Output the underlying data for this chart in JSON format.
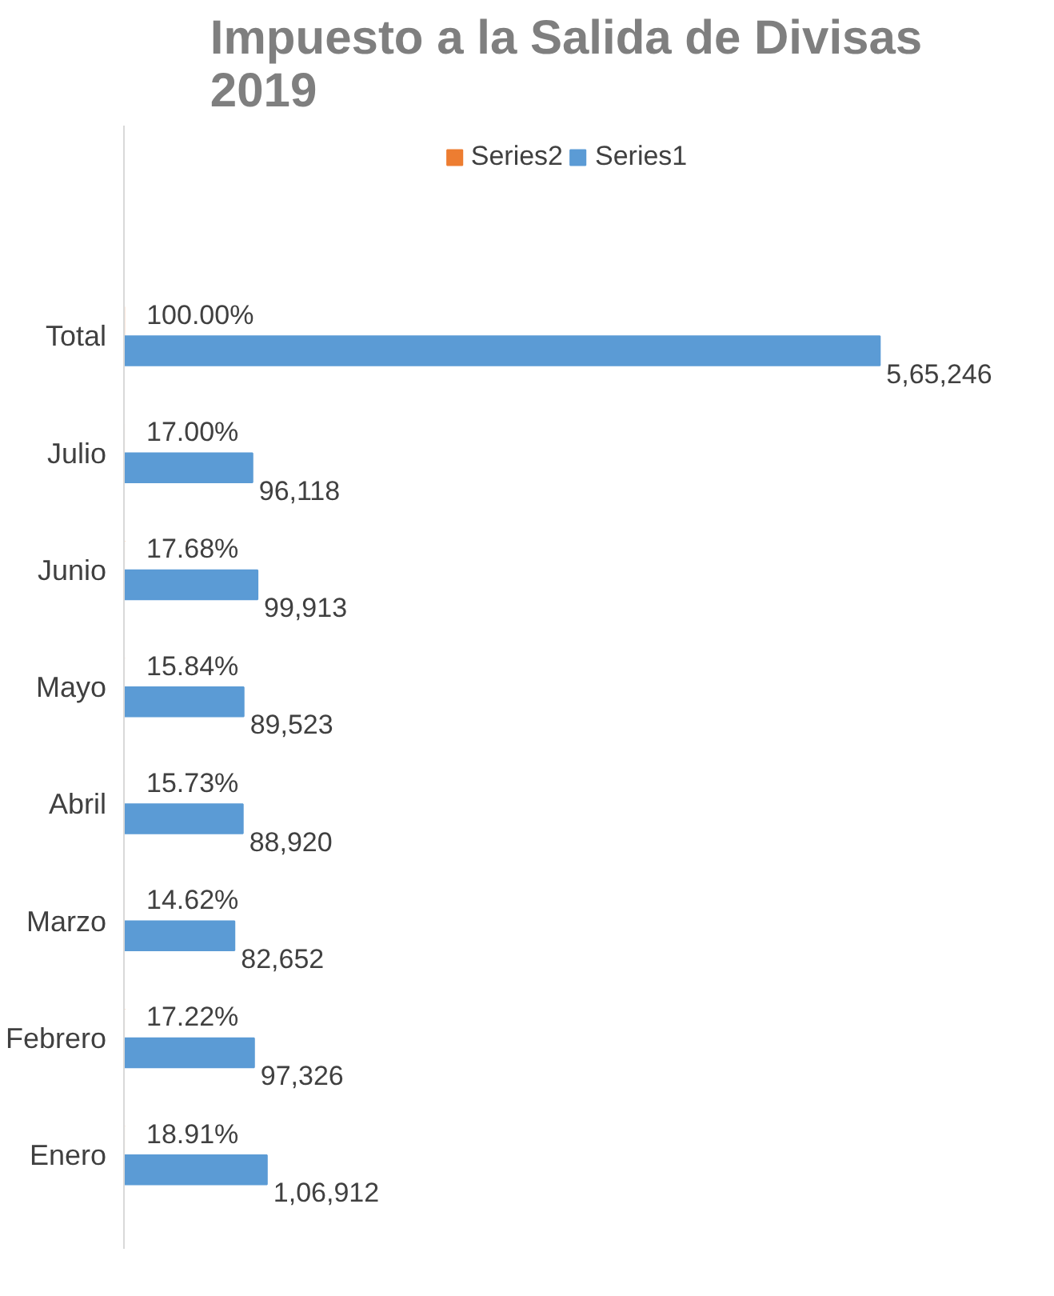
{
  "chart_data": {
    "type": "bar",
    "orientation": "horizontal",
    "title": "Impuesto a la Salida de Divisas\n2019",
    "categories": [
      "Total",
      "Julio",
      "Junio",
      "Mayo",
      "Abril",
      "Marzo",
      "Febrero",
      "Enero"
    ],
    "series": [
      {
        "name": "Series2",
        "color": "#ed7d31",
        "values": [
          100,
          17.0,
          17.68,
          15.84,
          15.73,
          14.62,
          17.22,
          18.91
        ],
        "value_labels": [
          "100.00%",
          "17.00%",
          "17.68%",
          "15.84%",
          "15.73%",
          "14.62%",
          "17.22%",
          "18.91%"
        ]
      },
      {
        "name": "Series1",
        "color": "#5b9bd5",
        "values": [
          565246,
          96118,
          99913,
          89523,
          88920,
          82652,
          97326,
          106912
        ],
        "value_labels": [
          "5,65,246",
          "96,118",
          "99,913",
          "89,523",
          "88,920",
          "82,652",
          "97,326",
          "1,06,912"
        ]
      }
    ],
    "legend": "top",
    "grid": false,
    "tick_labels": "y"
  }
}
